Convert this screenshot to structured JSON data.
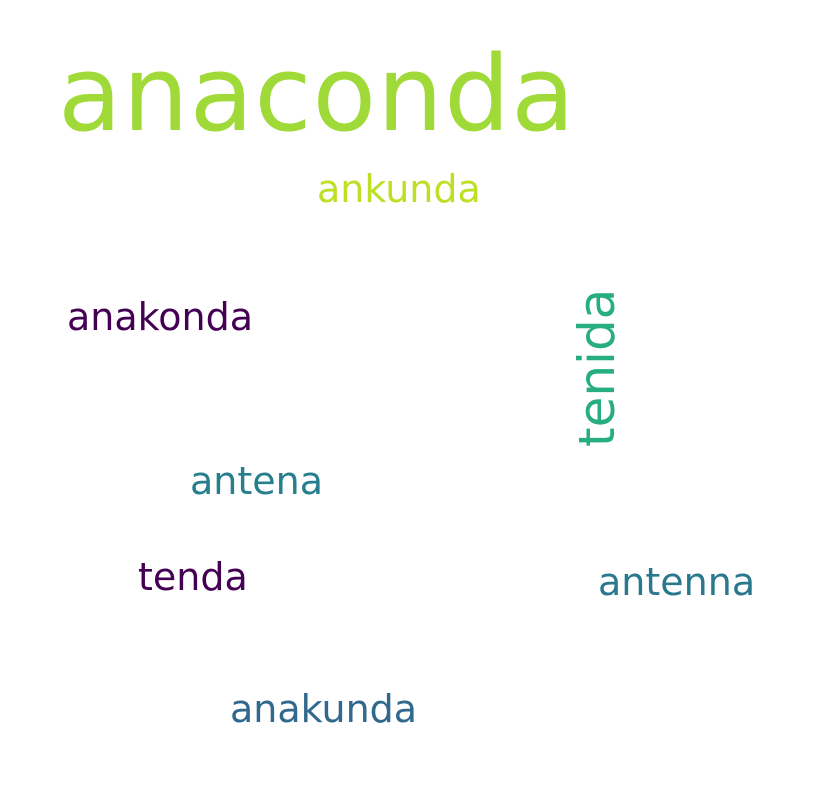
{
  "words": [
    {
      "text": "anaconda",
      "color": "#a0da39"
    },
    {
      "text": "ankunda",
      "color": "#bddf26"
    },
    {
      "text": "anakonda",
      "color": "#440154"
    },
    {
      "text": "tenida",
      "color": "#26ad81"
    },
    {
      "text": "antena",
      "color": "#277f8e"
    },
    {
      "text": "tenda",
      "color": "#440154"
    },
    {
      "text": "antenna",
      "color": "#2a788e"
    },
    {
      "text": "anakunda",
      "color": "#31688e"
    }
  ]
}
